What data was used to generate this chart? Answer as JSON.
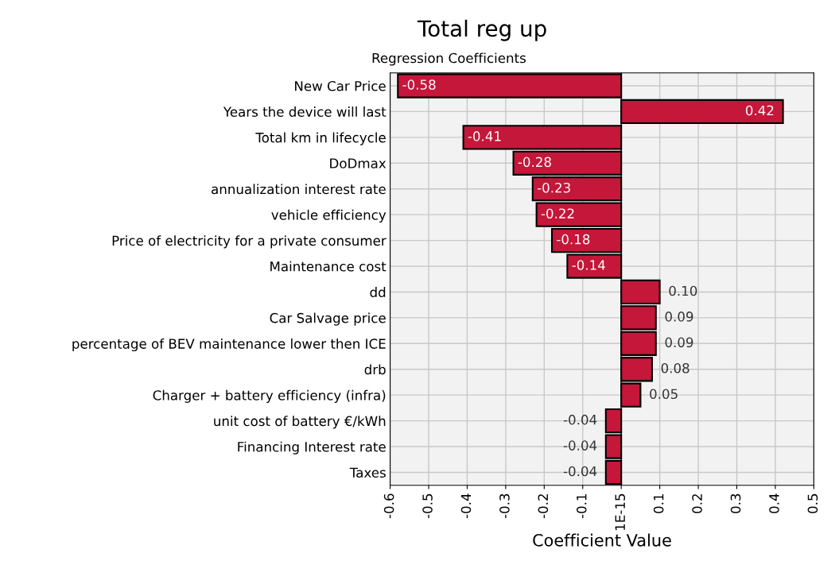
{
  "chart_data": {
    "type": "bar",
    "orientation": "horizontal",
    "title": "Total reg up",
    "subtitle": "Regression Coefficients",
    "xlabel": "Coefficient Value",
    "categories": [
      "New Car Price",
      "Years the device will last",
      "Total km in lifecycle",
      "DoDmax",
      "annualization interest rate",
      "vehicle efficiency",
      "Price of electricity for a private consumer",
      "Maintenance cost",
      "dd",
      "Car Salvage price",
      "percentage of BEV maintenance lower then ICE",
      "drb",
      "Charger + battery efficiency (infra)",
      "unit cost of battery €/kWh",
      "Financing Interest rate",
      "Taxes"
    ],
    "values": [
      -0.58,
      0.42,
      -0.41,
      -0.28,
      -0.23,
      -0.22,
      -0.18,
      -0.14,
      0.1,
      0.09,
      0.09,
      0.08,
      0.05,
      -0.04,
      -0.04,
      -0.04
    ],
    "value_labels": [
      "-0.58",
      "0.42",
      "-0.41",
      "-0.28",
      "-0.23",
      "-0.22",
      "-0.18",
      "-0.14",
      "0.10",
      "0.09",
      "0.09",
      "0.08",
      "0.05",
      "-0.04",
      "-0.04",
      "-0.04"
    ],
    "color": "#c4173a",
    "grid": true,
    "xlim": [
      -0.6,
      0.5
    ],
    "xticks": [
      -0.6,
      -0.5,
      -0.4,
      -0.3,
      -0.2,
      -0.1,
      {
        "value": 0,
        "label": "1E-15"
      },
      0.1,
      0.2,
      0.3,
      0.4,
      0.5
    ]
  }
}
